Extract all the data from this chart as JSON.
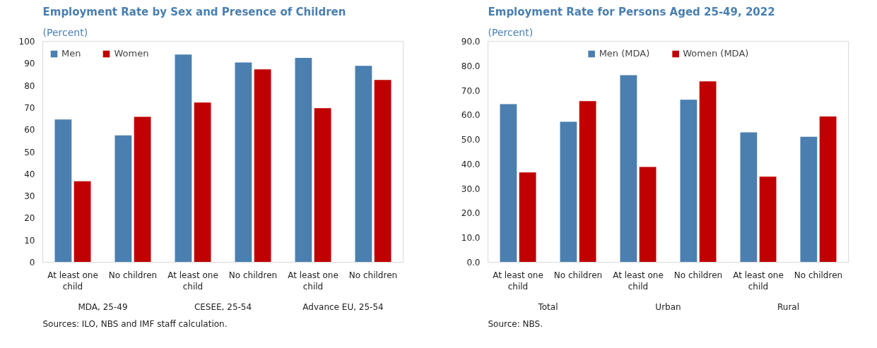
{
  "chart_data": [
    {
      "type": "bar",
      "title": "Employment Rate by Sex and Presence of Children",
      "subtitle": "(Percent)",
      "categories": [
        "At least one child",
        "No children",
        "At least one child",
        "No children",
        "At least one child",
        "No children"
      ],
      "series": [
        {
          "name": "Men",
          "color": "#4a7fb0",
          "values": [
            64.6,
            57.4,
            94,
            90.4,
            92.5,
            88.9
          ]
        },
        {
          "name": "Women",
          "color": "#c00000",
          "values": [
            36.7,
            65.8,
            72.3,
            87.3,
            69.7,
            82.5
          ]
        }
      ],
      "ylim": [
        0,
        100
      ],
      "yticks": [
        0,
        10,
        20,
        30,
        40,
        50,
        60,
        70,
        80,
        90,
        100
      ],
      "grid": false,
      "legend": "top left",
      "annotations": [
        "MDA, 25-49",
        "CESEE, 25-54",
        "Advance EU, 25-54",
        "Sources: ILO, NBS and IMF staff calculation."
      ]
    },
    {
      "type": "bar",
      "title": "Employment Rate for Persons Aged 25-49, 2022",
      "subtitle": "(Percent)",
      "categories": [
        "At least one child",
        "No children",
        "At least one child",
        "No children",
        "At least one child",
        "No children"
      ],
      "series": [
        {
          "name": "Men (MDA)",
          "color": "#4a7fb0",
          "values": [
            64.4,
            57.2,
            76.2,
            66.2,
            52.9,
            51.1
          ]
        },
        {
          "name": "Women (MDA)",
          "color": "#c00000",
          "values": [
            36.6,
            65.6,
            38.8,
            73.7,
            34.9,
            59.4
          ]
        }
      ],
      "ylim": [
        0,
        90
      ],
      "yticks": [
        {
          "value": 0,
          "label": "0.0"
        },
        {
          "value": 10,
          "label": "10.0"
        },
        {
          "value": 20,
          "label": "20.0"
        },
        {
          "value": 30,
          "label": "30.0"
        },
        {
          "value": 40,
          "label": "40.0"
        },
        {
          "value": 50,
          "label": "50.0"
        },
        {
          "value": 60,
          "label": "60.0"
        },
        {
          "value": 70,
          "label": "70.0"
        },
        {
          "value": 80,
          "label": "80.0"
        },
        {
          "value": 90,
          "label": "90.0"
        }
      ],
      "grid": false,
      "legend": "top",
      "annotations": [
        "Total",
        "Urban",
        "Rural",
        "Source: NBS."
      ]
    }
  ]
}
